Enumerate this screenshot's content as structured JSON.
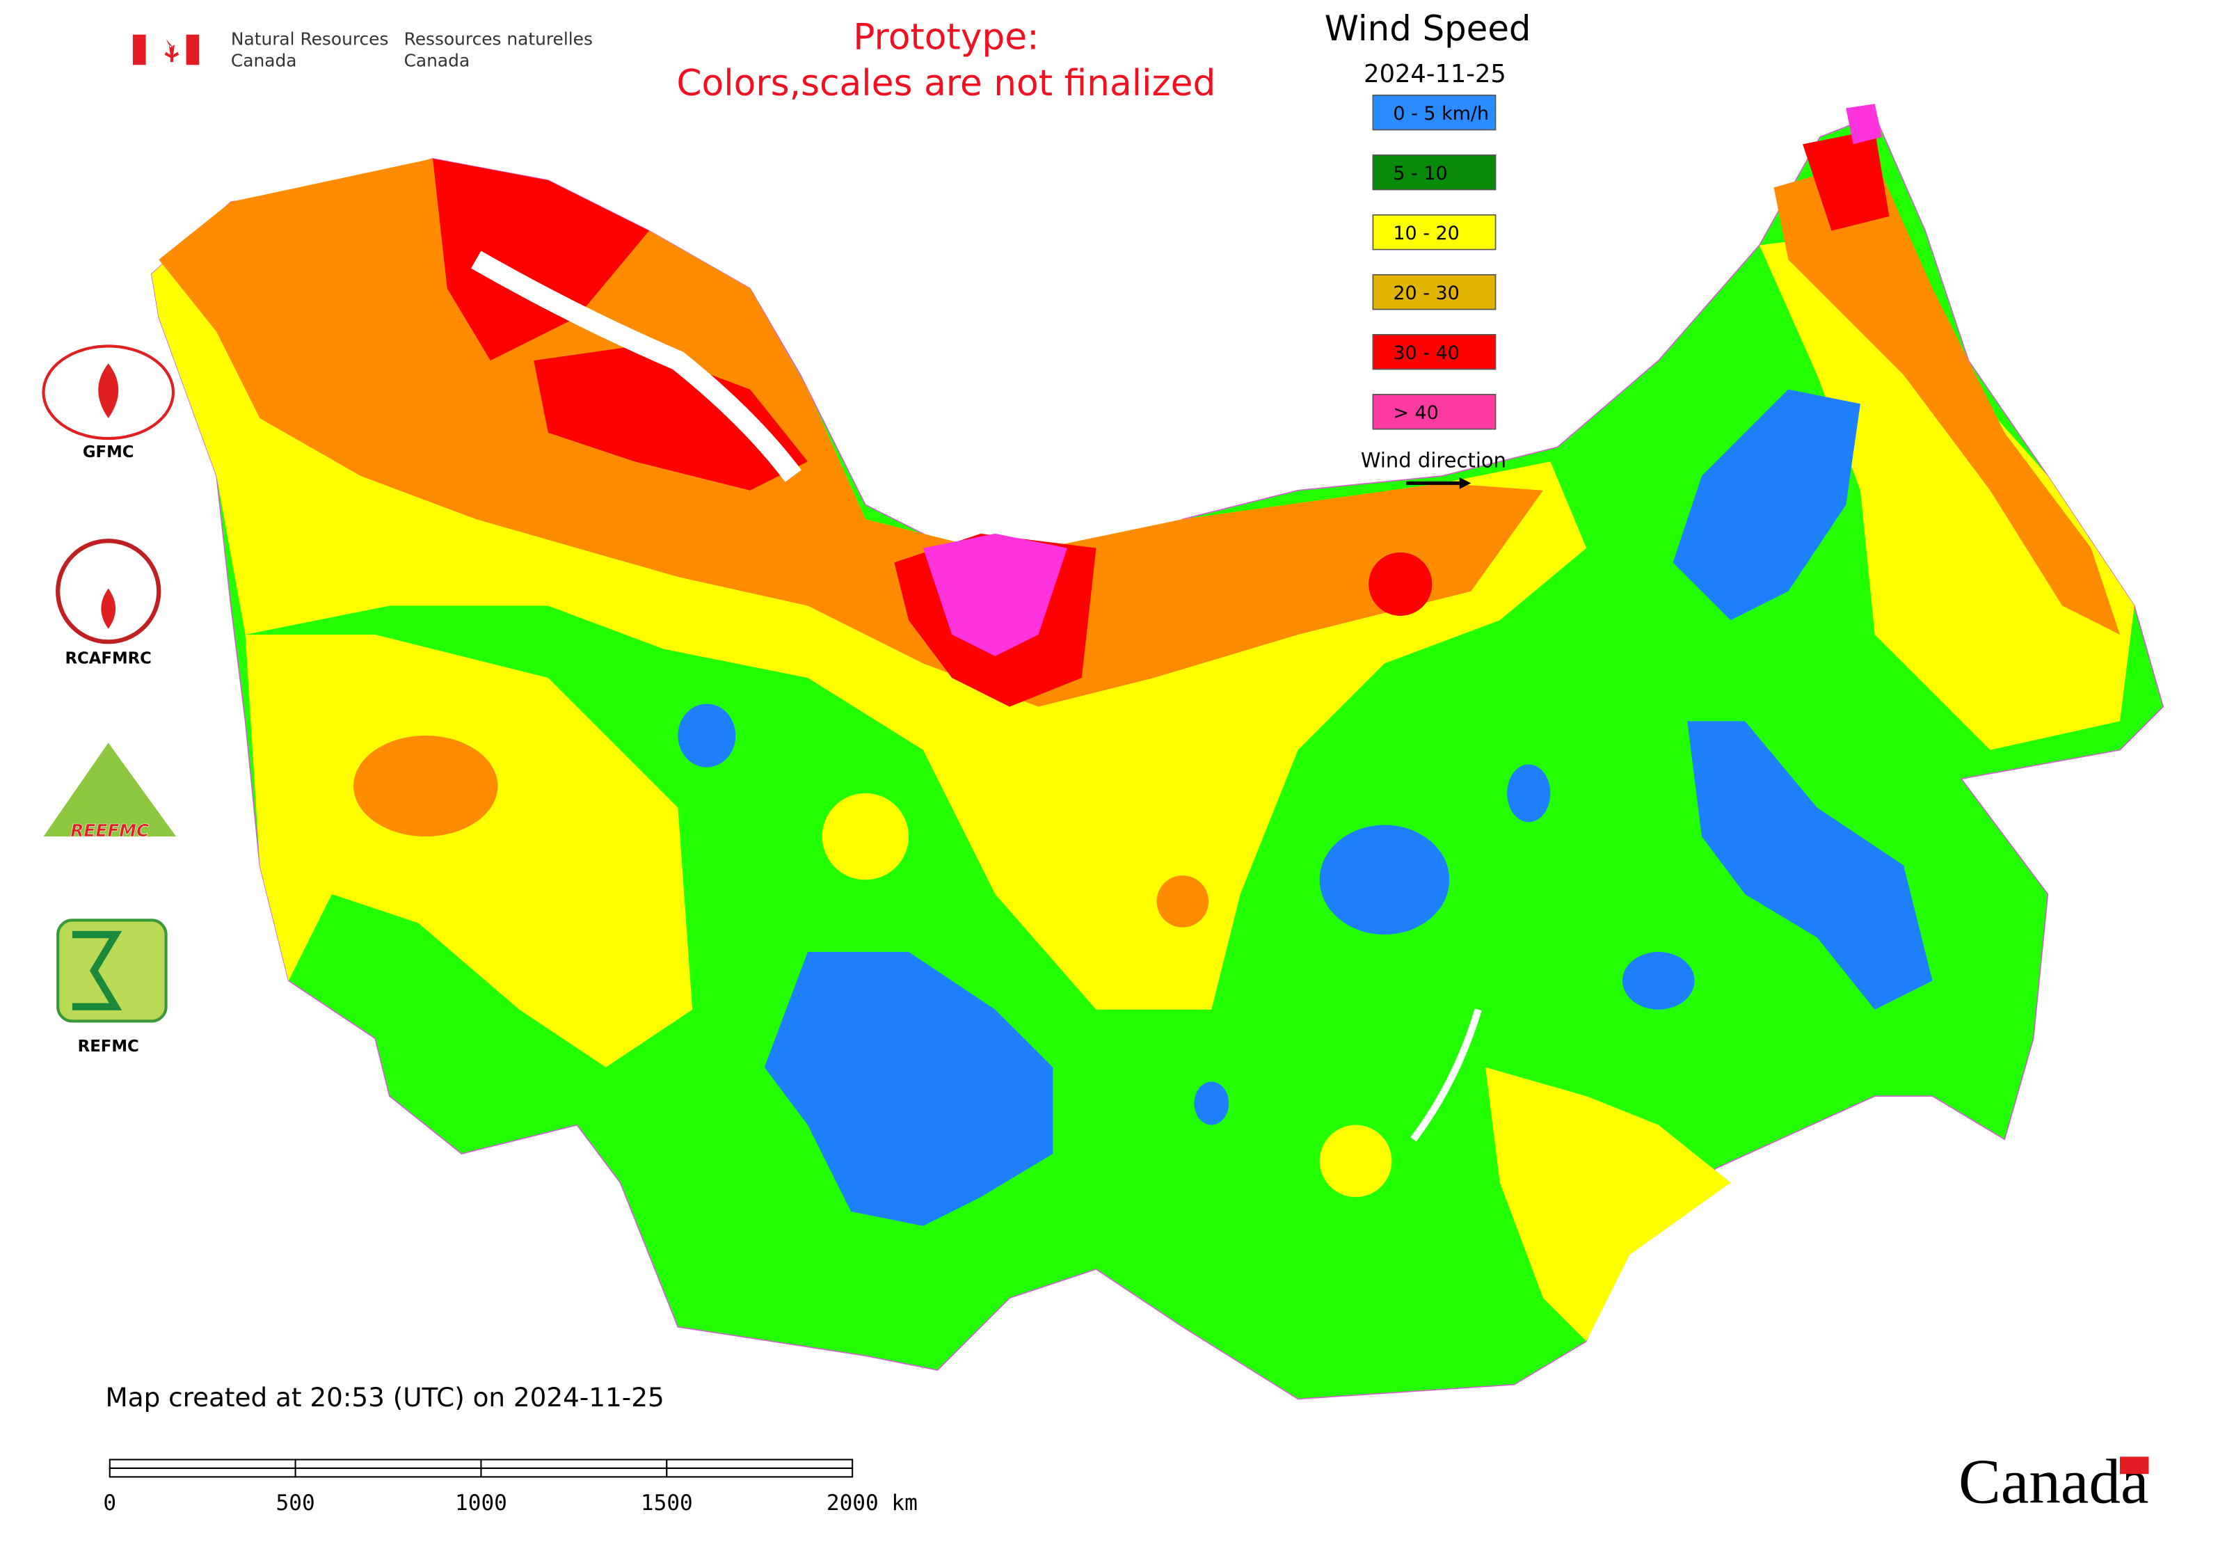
{
  "header": {
    "agency_en": [
      "Natural Resources",
      "Canada"
    ],
    "agency_fr": [
      "Ressources naturelles",
      "Canada"
    ],
    "notice": [
      "Prototype:",
      "Colors,scales are not finalized"
    ]
  },
  "legend": {
    "title": "Wind Speed",
    "date": "2024-11-25",
    "items": [
      {
        "label": "0 - 5 km/h",
        "color": "#2b8cff"
      },
      {
        "label": "5 - 10",
        "color": "#0a8a0a"
      },
      {
        "label": "10 - 20",
        "color": "#ffff00"
      },
      {
        "label": "20 - 30",
        "color": "#e0b400"
      },
      {
        "label": "30 - 40",
        "color": "#ff0000"
      },
      {
        "label": "> 40",
        "color": "#ff3aa0"
      }
    ],
    "direction": "Wind direction"
  },
  "logos": [
    "GFMC",
    "RCAFMRC",
    "REEFMC",
    "REFMC"
  ],
  "footer": {
    "created": "Map created at 20:53 (UTC) on 2024-11-25",
    "scale_labels": [
      "0",
      "500",
      "1000",
      "1500",
      "2000 km"
    ],
    "wordmark": "Canada"
  }
}
